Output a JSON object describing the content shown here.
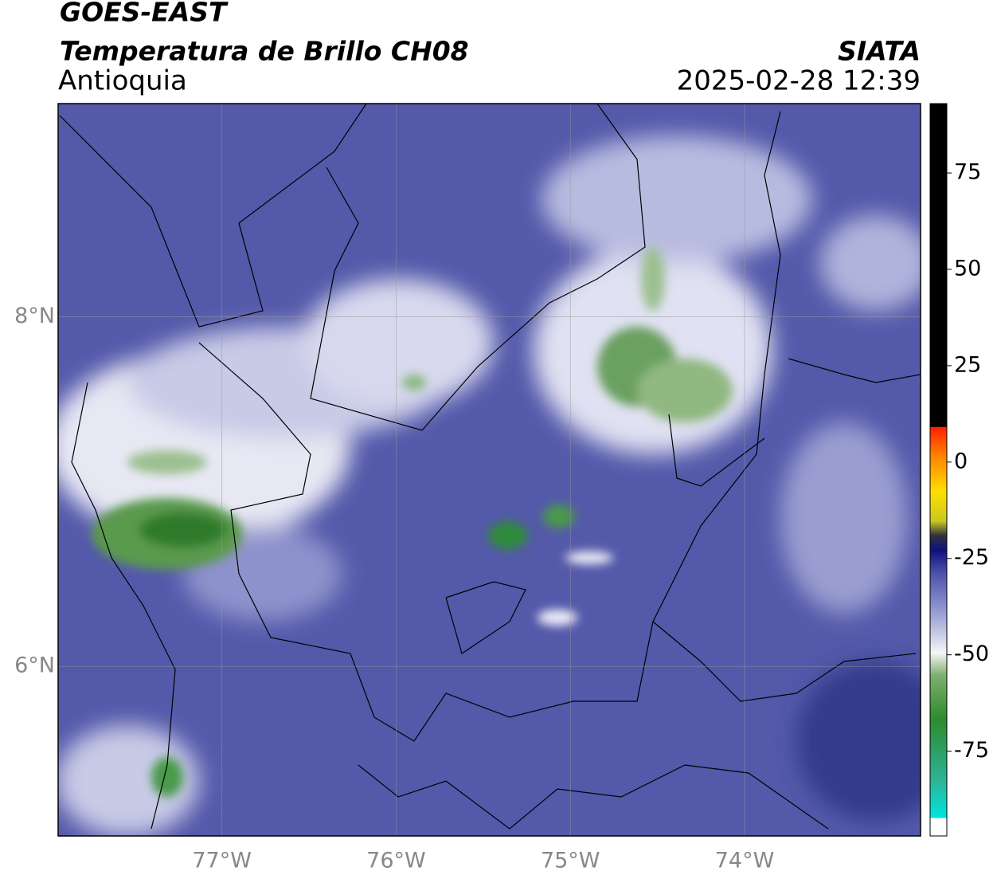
{
  "header": {
    "title": "GOES-EAST",
    "subtitle": "Temperatura de Brillo CH08",
    "region": "Antioquia",
    "source": "SIATA",
    "datetime": "2025-02-28 12:39"
  },
  "map": {
    "xlim": [
      -77.94,
      -72.99
    ],
    "ylim": [
      5.03,
      9.22
    ],
    "xticks": [
      {
        "value": -77,
        "label": "77°W"
      },
      {
        "value": -76,
        "label": "76°W"
      },
      {
        "value": -75,
        "label": "75°W"
      },
      {
        "value": -74,
        "label": "74°W"
      }
    ],
    "yticks": [
      {
        "value": 8,
        "label": "8°N"
      },
      {
        "value": 6,
        "label": "6°N"
      }
    ],
    "grid": true
  },
  "colorbar": {
    "lim": [
      -97,
      93
    ],
    "ticks": [
      75,
      50,
      25,
      0,
      -25,
      -50,
      -75
    ]
  }
}
